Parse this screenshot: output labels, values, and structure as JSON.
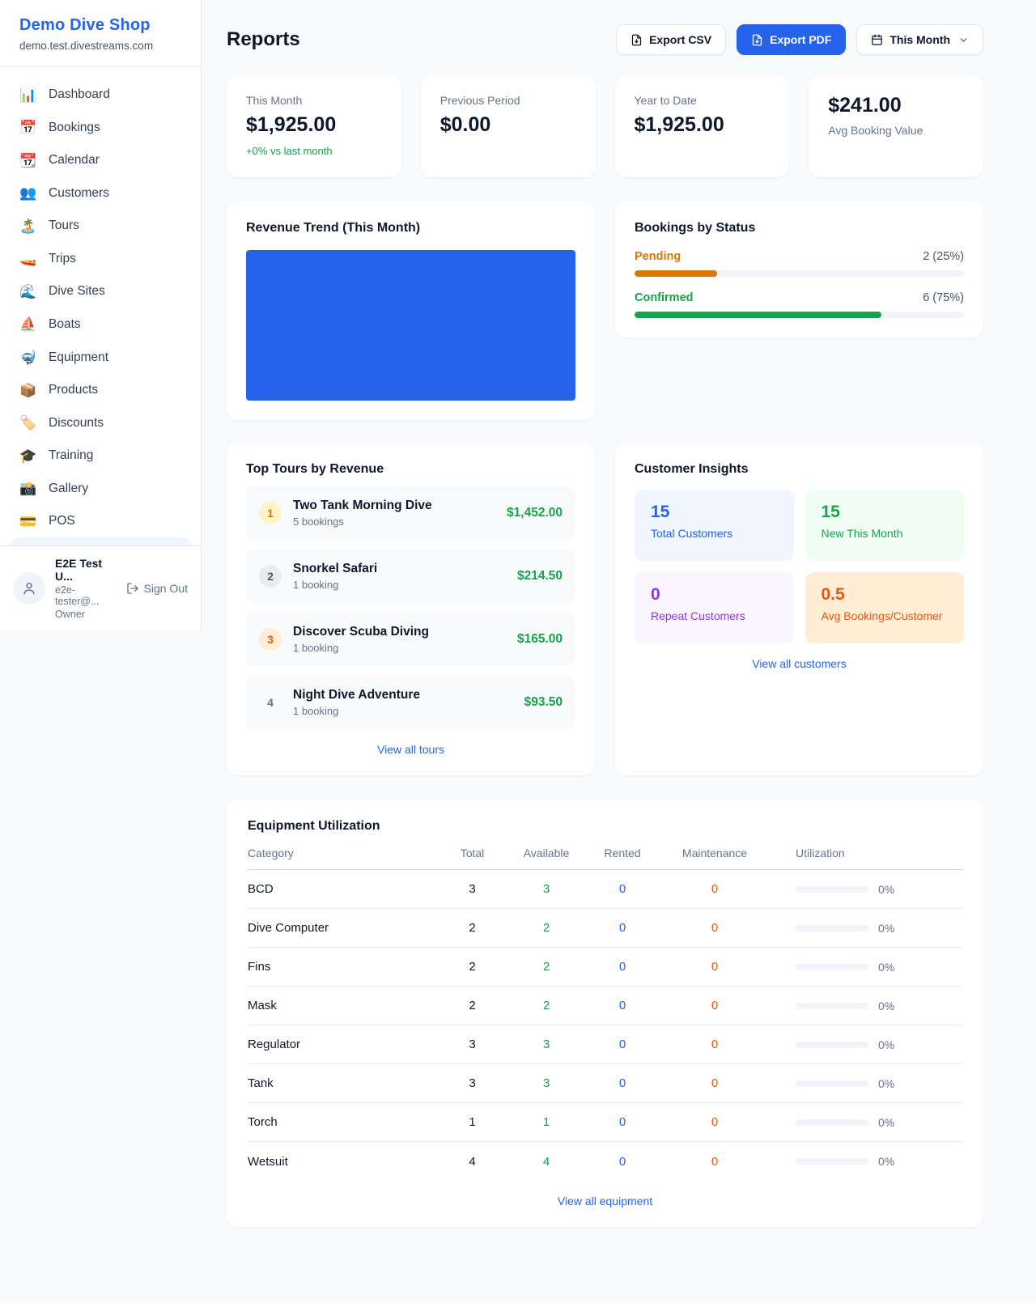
{
  "sidebar": {
    "shop_name": "Demo Dive Shop",
    "domain": "demo.test.divestreams.com",
    "items": [
      {
        "icon": "📊",
        "label": "Dashboard"
      },
      {
        "icon": "📅",
        "label": "Bookings"
      },
      {
        "icon": "📆",
        "label": "Calendar"
      },
      {
        "icon": "👥",
        "label": "Customers"
      },
      {
        "icon": "🏝️",
        "label": "Tours"
      },
      {
        "icon": "🚤",
        "label": "Trips"
      },
      {
        "icon": "🌊",
        "label": "Dive Sites"
      },
      {
        "icon": "⛵",
        "label": "Boats"
      },
      {
        "icon": "🤿",
        "label": "Equipment"
      },
      {
        "icon": "📦",
        "label": "Products"
      },
      {
        "icon": "🏷️",
        "label": "Discounts"
      },
      {
        "icon": "🎓",
        "label": "Training"
      },
      {
        "icon": "📸",
        "label": "Gallery"
      },
      {
        "icon": "💳",
        "label": "POS"
      }
    ],
    "user": {
      "name": "E2E Test U...",
      "email": "e2e-tester@...",
      "role": "Owner",
      "sign_out_label": "Sign Out"
    }
  },
  "header": {
    "title": "Reports",
    "export_csv_label": "Export CSV",
    "export_pdf_label": "Export PDF",
    "period_label": "This Month"
  },
  "stats": {
    "this_month": {
      "label": "This Month",
      "value": "$1,925.00",
      "delta": "+0% vs last month"
    },
    "previous_period": {
      "label": "Previous Period",
      "value": "$0.00"
    },
    "year_to_date": {
      "label": "Year to Date",
      "value": "$1,925.00"
    },
    "avg_booking": {
      "label": "Avg Booking Value",
      "value": "$241.00"
    }
  },
  "revenue_trend": {
    "title": "Revenue Trend (This Month)",
    "bar_color": "#2563eb",
    "bar_fill_pct": 100
  },
  "bookings_by_status": {
    "title": "Bookings by Status",
    "rows": [
      {
        "label": "Pending",
        "value_text": "2 (25%)",
        "pct": 25,
        "color": "#d97706"
      },
      {
        "label": "Confirmed",
        "value_text": "6 (75%)",
        "pct": 75,
        "color": "#16a34a"
      }
    ]
  },
  "top_tours": {
    "title": "Top Tours by Revenue",
    "items": [
      {
        "rank": "1",
        "name": "Two Tank Morning Dive",
        "bookings": "5 bookings",
        "revenue": "$1,452.00"
      },
      {
        "rank": "2",
        "name": "Snorkel Safari",
        "bookings": "1 booking",
        "revenue": "$214.50"
      },
      {
        "rank": "3",
        "name": "Discover Scuba Diving",
        "bookings": "1 booking",
        "revenue": "$165.00"
      },
      {
        "rank": "4",
        "name": "Night Dive Adventure",
        "bookings": "1 booking",
        "revenue": "$93.50"
      }
    ],
    "view_all_label": "View all tours"
  },
  "customer_insights": {
    "title": "Customer Insights",
    "tiles": [
      {
        "value": "15",
        "label": "Total Customers",
        "color": "#2563eb"
      },
      {
        "value": "15",
        "label": "New This Month",
        "color": "#16a34a"
      },
      {
        "value": "0",
        "label": "Repeat Customers",
        "color": "#9333ea"
      },
      {
        "value": "0.5",
        "label": "Avg Bookings/Customer",
        "color": "#ea580c"
      }
    ],
    "view_all_label": "View all customers"
  },
  "equipment": {
    "title": "Equipment Utilization",
    "columns": [
      "Category",
      "Total",
      "Available",
      "Rented",
      "Maintenance",
      "Utilization"
    ],
    "rows": [
      {
        "category": "BCD",
        "total": "3",
        "available": "3",
        "rented": "0",
        "maintenance": "0",
        "utilization": "0%",
        "utilization_pct": 0
      },
      {
        "category": "Dive Computer",
        "total": "2",
        "available": "2",
        "rented": "0",
        "maintenance": "0",
        "utilization": "0%",
        "utilization_pct": 0
      },
      {
        "category": "Fins",
        "total": "2",
        "available": "2",
        "rented": "0",
        "maintenance": "0",
        "utilization": "0%",
        "utilization_pct": 0
      },
      {
        "category": "Mask",
        "total": "2",
        "available": "2",
        "rented": "0",
        "maintenance": "0",
        "utilization": "0%",
        "utilization_pct": 0
      },
      {
        "category": "Regulator",
        "total": "3",
        "available": "3",
        "rented": "0",
        "maintenance": "0",
        "utilization": "0%",
        "utilization_pct": 0
      },
      {
        "category": "Tank",
        "total": "3",
        "available": "3",
        "rented": "0",
        "maintenance": "0",
        "utilization": "0%",
        "utilization_pct": 0
      },
      {
        "category": "Torch",
        "total": "1",
        "available": "1",
        "rented": "0",
        "maintenance": "0",
        "utilization": "0%",
        "utilization_pct": 0
      },
      {
        "category": "Wetsuit",
        "total": "4",
        "available": "4",
        "rented": "0",
        "maintenance": "0",
        "utilization": "0%",
        "utilization_pct": 0
      }
    ],
    "view_all_label": "View all equipment"
  }
}
